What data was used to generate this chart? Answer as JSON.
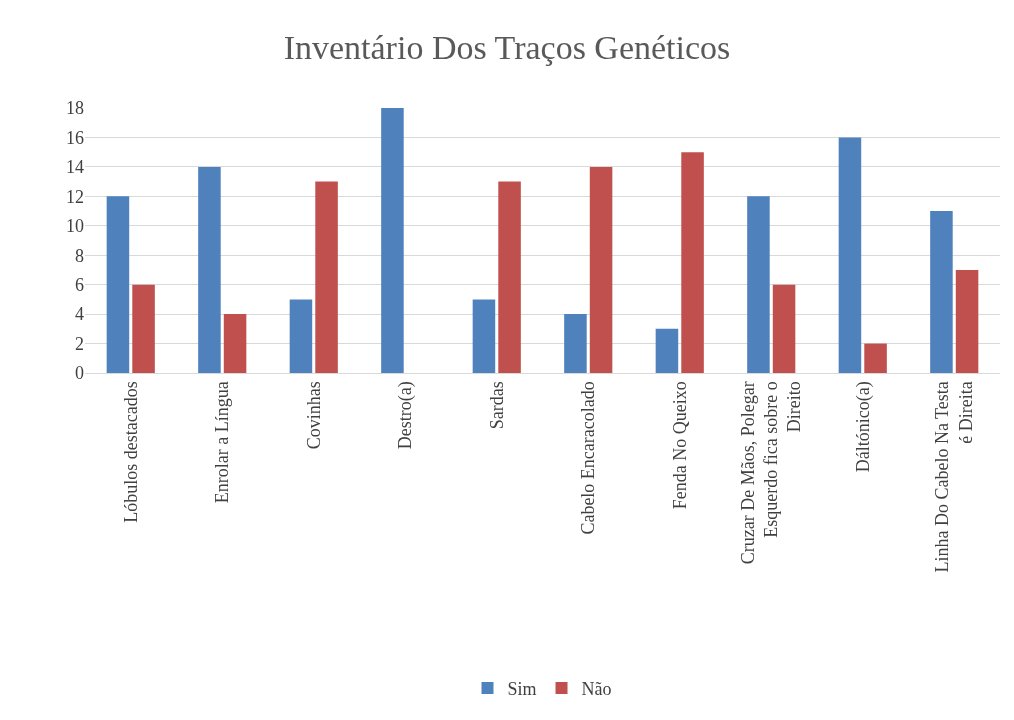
{
  "chart_data": {
    "type": "bar",
    "title": "Inventário Dos Traços Genéticos",
    "categories": [
      "Lóbulos destacados",
      "Enrolar a Língua",
      "Covinhas",
      "Destro(a)",
      "Sardas",
      "Cabelo Encaracolado",
      "Fenda No Queixo",
      "Cruzar De Mãos, Polegar Esquerdo fica sobre o Direito",
      "Dáltónico(a)",
      "Linha Do Cabelo Na Testa é Direita"
    ],
    "series": [
      {
        "name": "Sim",
        "color": "#4f81bd",
        "values": [
          12,
          14,
          5,
          18,
          5,
          4,
          3,
          12,
          16,
          11
        ]
      },
      {
        "name": "Não",
        "color": "#c0504d",
        "values": [
          6,
          4,
          13,
          0,
          13,
          14,
          15,
          6,
          2,
          7
        ]
      }
    ],
    "ylim": [
      0,
      18
    ],
    "yticks": [
      0,
      2,
      4,
      6,
      8,
      10,
      12,
      14,
      16,
      18
    ],
    "grid": "y",
    "legend": "bottom"
  }
}
